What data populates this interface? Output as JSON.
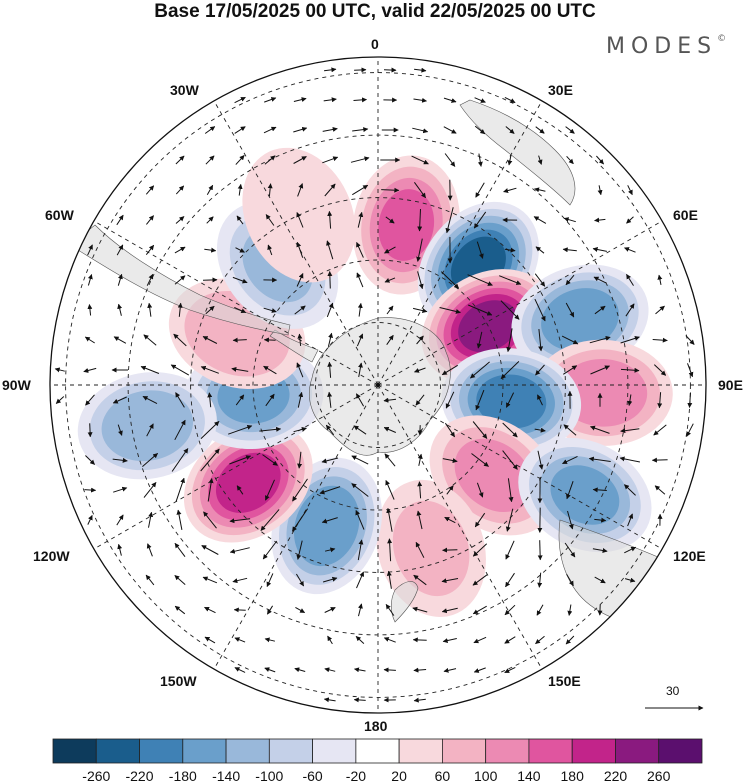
{
  "title": "Base 17/05/2025 00 UTC, valid 22/05/2025 00 UTC",
  "brand": {
    "text": "MODES",
    "mark": "©"
  },
  "longitude_labels": [
    "0",
    "30E",
    "60E",
    "90E",
    "120E",
    "150E",
    "180",
    "150W",
    "120W",
    "90W",
    "60W",
    "30W"
  ],
  "vector_scale": {
    "label": "30"
  },
  "colorbar": {
    "tick_labels": [
      "-260",
      "-220",
      "-180",
      "-140",
      "-100",
      "-60",
      "-20",
      "20",
      "60",
      "100",
      "140",
      "180",
      "220",
      "260"
    ],
    "colors": [
      "#0d3b5c",
      "#1a5d8c",
      "#3f81b5",
      "#6a9fcb",
      "#99b8da",
      "#c4d0e8",
      "#e6e6f3",
      "#ffffff",
      "#f8d9dd",
      "#f3b3c3",
      "#ec8ab3",
      "#e0559f",
      "#c2248a",
      "#8a1a7f",
      "#5b0f6e"
    ]
  },
  "anomalies": [
    {
      "lon": 10,
      "colat": 52,
      "value": 150
    },
    {
      "lon": 40,
      "colat": 50,
      "value": -230
    },
    {
      "lon": 62,
      "colat": 40,
      "value": 230
    },
    {
      "lon": 72,
      "colat": 68,
      "value": -170
    },
    {
      "lon": 92,
      "colat": 72,
      "value": 130
    },
    {
      "lon": 97,
      "colat": 43,
      "value": -200
    },
    {
      "lon": 128,
      "colat": 47,
      "value": 120
    },
    {
      "lon": 118,
      "colat": 75,
      "value": -150
    },
    {
      "lon": 162,
      "colat": 55,
      "value": 70
    },
    {
      "lon": -160,
      "colat": 48,
      "value": -180
    },
    {
      "lon": -127,
      "colat": 52,
      "value": 200
    },
    {
      "lon": -95,
      "colat": 40,
      "value": -150
    },
    {
      "lon": -100,
      "colat": 75,
      "value": -140
    },
    {
      "lon": -70,
      "colat": 48,
      "value": 100
    },
    {
      "lon": -40,
      "colat": 50,
      "value": -110
    },
    {
      "lon": -25,
      "colat": 60,
      "value": 60
    }
  ]
}
